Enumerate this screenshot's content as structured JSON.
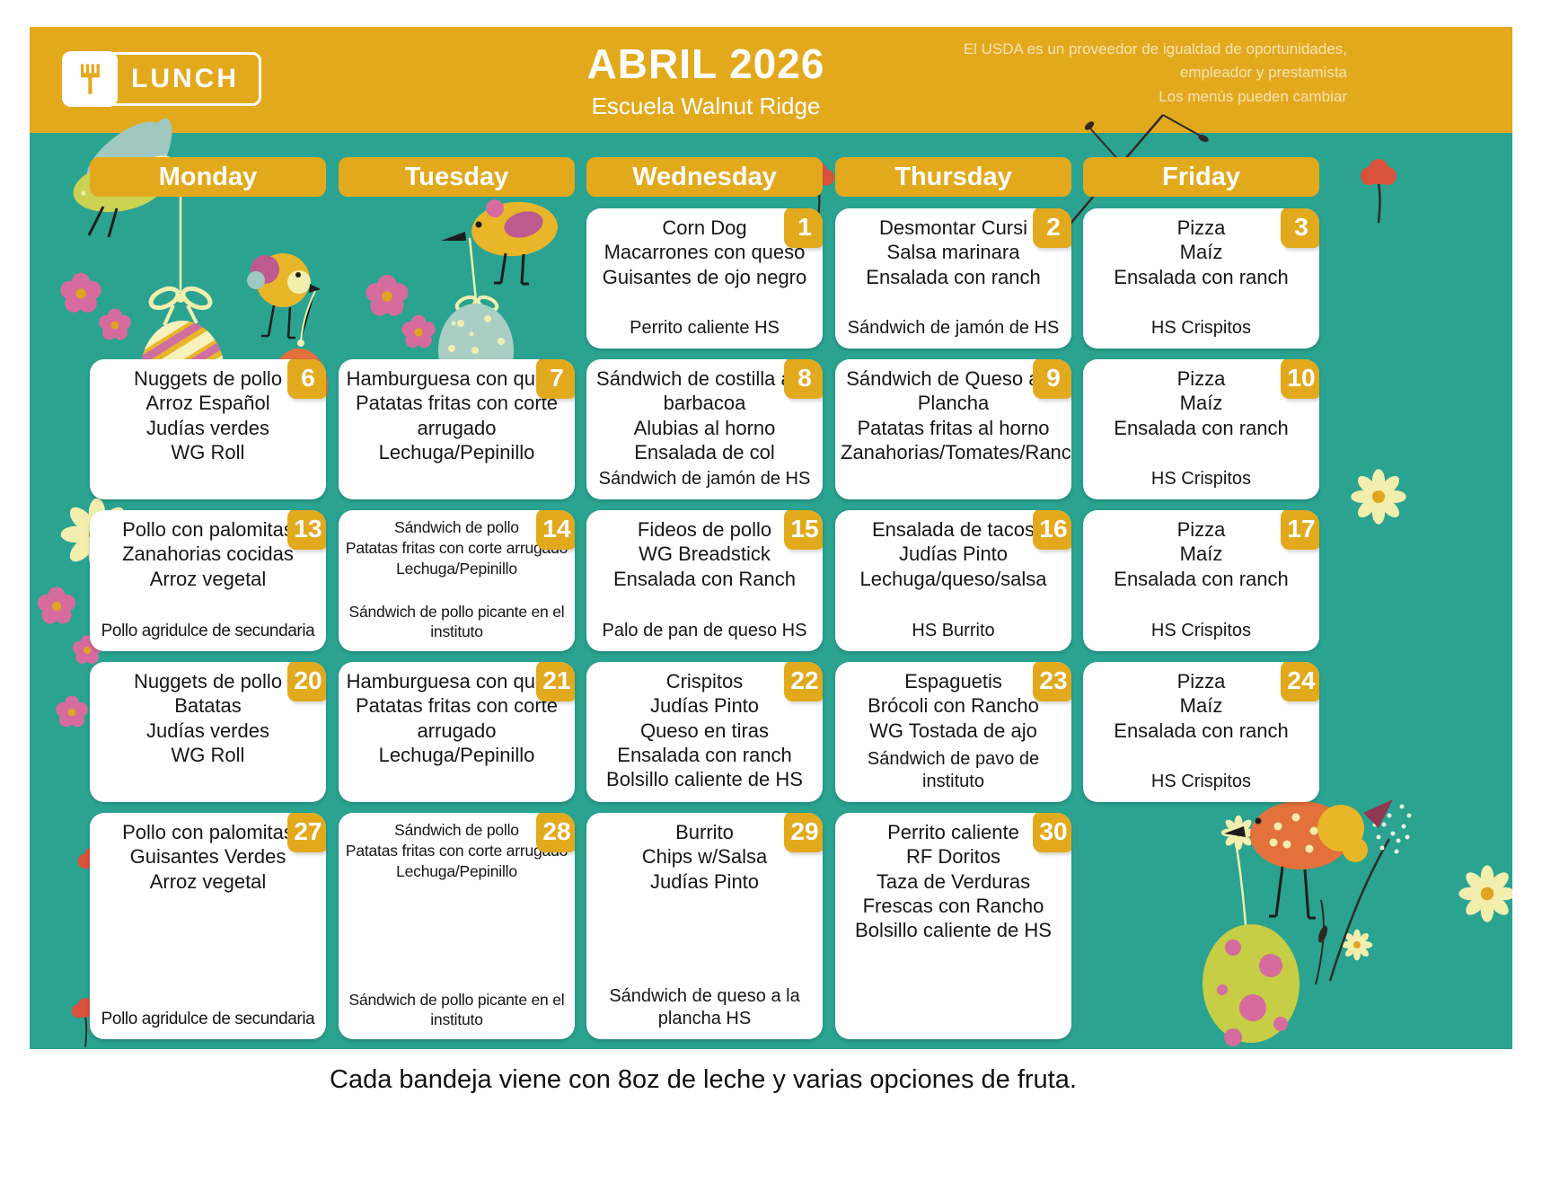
{
  "colors": {
    "teal_background": "#2AA391",
    "gold_accent": "#E3A91D",
    "card_white": "#FFFFFF",
    "text_dark": "#161616",
    "cream": "#F2EEAD",
    "pink": "#D66B9E",
    "orange": "#E2713B",
    "leaf_green": "#C5CE45"
  },
  "header": {
    "logo_label": "LUNCH",
    "title": "ABRIL 2026",
    "subtitle": "Escuela Walnut Ridge",
    "usda_lines": [
      "El USDA es un proveedor de igualdad de oportunidades,",
      "empleador y prestamista",
      "Los menús pueden cambiar"
    ]
  },
  "calendar": {
    "day_headers": [
      "Monday",
      "Tuesday",
      "Wednesday",
      "Thursday",
      "Friday"
    ],
    "weeks": [
      [
        null,
        null,
        {
          "date": 1,
          "items": [
            "Corn Dog",
            "Macarrones con queso",
            "Guisantes de ojo negro"
          ],
          "hs": [
            "Perrito caliente HS"
          ]
        },
        {
          "date": 2,
          "items": [
            "Desmontar Cursi",
            "Salsa marinara",
            "Ensalada con ranch"
          ],
          "hs": [
            "Sándwich de jamón de HS"
          ]
        },
        {
          "date": 3,
          "items": [
            "Pizza",
            "Maíz",
            "Ensalada con ranch"
          ],
          "hs": [
            "HS Crispitos"
          ]
        }
      ],
      [
        {
          "date": 6,
          "items": [
            "Nuggets de pollo",
            "Arroz Español",
            "Judías verdes",
            "WG Roll"
          ],
          "hs": []
        },
        {
          "date": 7,
          "items": [
            "Hamburguesa con queso",
            "Patatas fritas con corte arrugado",
            "Lechuga/Pepinillo"
          ],
          "hs": []
        },
        {
          "date": 8,
          "items": [
            "Sándwich de costilla a la barbacoa",
            "Alubias al horno",
            "Ensalada de col"
          ],
          "hs": [
            "Sándwich de jamón de HS"
          ]
        },
        {
          "date": 9,
          "items": [
            "Sándwich de Queso a la Plancha",
            "Patatas fritas al horno",
            "Zanahorias/Tomates/Ranch"
          ],
          "hs": []
        },
        {
          "date": 10,
          "items": [
            "Pizza",
            "Maíz",
            "Ensalada con ranch"
          ],
          "hs": [
            "HS Crispitos"
          ]
        }
      ],
      [
        {
          "date": 13,
          "items": [
            "Pollo con palomitas",
            "Zanahorias cocidas",
            "Arroz vegetal"
          ],
          "hs": [
            "Pollo agridulce de secundaria"
          ],
          "hs_fit": true
        },
        {
          "date": 14,
          "small": true,
          "items": [
            "Sándwich de pollo",
            "Patatas fritas con corte arrugado",
            "Lechuga/Pepinillo"
          ],
          "hs": [
            "Sándwich de pollo picante en el instituto"
          ]
        },
        {
          "date": 15,
          "items": [
            "Fideos de pollo",
            "WG Breadstick",
            "Ensalada con Ranch"
          ],
          "hs": [
            "Palo de pan de queso HS"
          ]
        },
        {
          "date": 16,
          "items": [
            "Ensalada de tacos",
            "Judías Pinto",
            "Lechuga/queso/salsa"
          ],
          "hs": [
            "HS Burrito"
          ]
        },
        {
          "date": 17,
          "items": [
            "Pizza",
            "Maíz",
            "Ensalada con ranch"
          ],
          "hs": [
            "HS Crispitos"
          ]
        }
      ],
      [
        {
          "date": 20,
          "items": [
            "Nuggets de pollo",
            "Batatas",
            "Judías verdes",
            "WG Roll"
          ],
          "hs": []
        },
        {
          "date": 21,
          "items": [
            "Hamburguesa con queso",
            "Patatas fritas con corte arrugado",
            "Lechuga/Pepinillo"
          ],
          "hs": []
        },
        {
          "date": 22,
          "items": [
            "Crispitos",
            "Judías Pinto",
            "Queso en tiras",
            "Ensalada con ranch",
            "Bolsillo caliente de HS"
          ],
          "hs": []
        },
        {
          "date": 23,
          "items": [
            "Espaguetis",
            "Brócoli con Rancho",
            "WG Tostada de ajo"
          ],
          "hs": [
            "Sándwich de pavo de instituto"
          ]
        },
        {
          "date": 24,
          "items": [
            "Pizza",
            "Maíz",
            "Ensalada con ranch"
          ],
          "hs": [
            "HS Crispitos"
          ]
        }
      ],
      [
        {
          "date": 27,
          "items": [
            "Pollo con palomitas",
            "Guisantes Verdes",
            "Arroz vegetal"
          ],
          "hs": [
            "Pollo agridulce de secundaria"
          ],
          "hs_fit": true
        },
        {
          "date": 28,
          "small": true,
          "items": [
            "Sándwich de pollo",
            "Patatas fritas con corte arrugado",
            "Lechuga/Pepinillo"
          ],
          "hs": [
            "Sándwich de pollo picante en el instituto"
          ]
        },
        {
          "date": 29,
          "items": [
            "Burrito",
            "Chips w/Salsa",
            "Judías Pinto"
          ],
          "hs": [
            "Sándwich de queso a la plancha HS"
          ]
        },
        {
          "date": 30,
          "items": [
            "Perrito caliente",
            "RF Doritos",
            "Taza de Verduras Frescas con Rancho",
            "Bolsillo caliente de HS"
          ],
          "hs": []
        },
        null
      ]
    ]
  },
  "footer": {
    "note": "Cada bandeja viene con 8oz de leche y varias opciones de fruta."
  }
}
